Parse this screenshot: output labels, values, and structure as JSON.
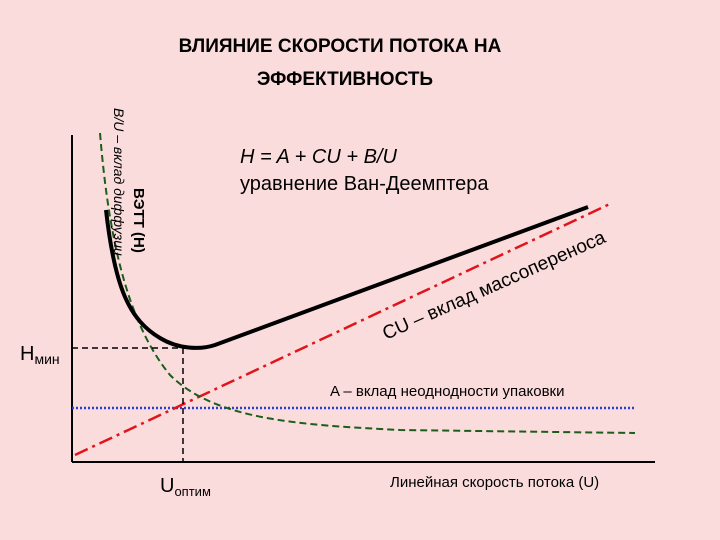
{
  "title": [
    "ВЛИЯНИЕ СКОРОСТИ ПОТОКА НА",
    "ЭФФЕКТИВНОСТЬ"
  ],
  "y_axis_label": "ВЭТТ (H)",
  "diffusion_label": "B/U – вклад диффузии",
  "equation": "H = A + CU + B/U",
  "equation_name": "уравнение Ван-Деемптера",
  "mass_transfer_label": "CU – вклад массопереноса",
  "h_min": {
    "main": "H",
    "sub": "мин"
  },
  "packing_label": "A – вклад неоднодности упаковки",
  "u_opt": {
    "main": "U",
    "sub": "оптим"
  },
  "x_axis_label": "Линейная скорость потока (U)"
}
